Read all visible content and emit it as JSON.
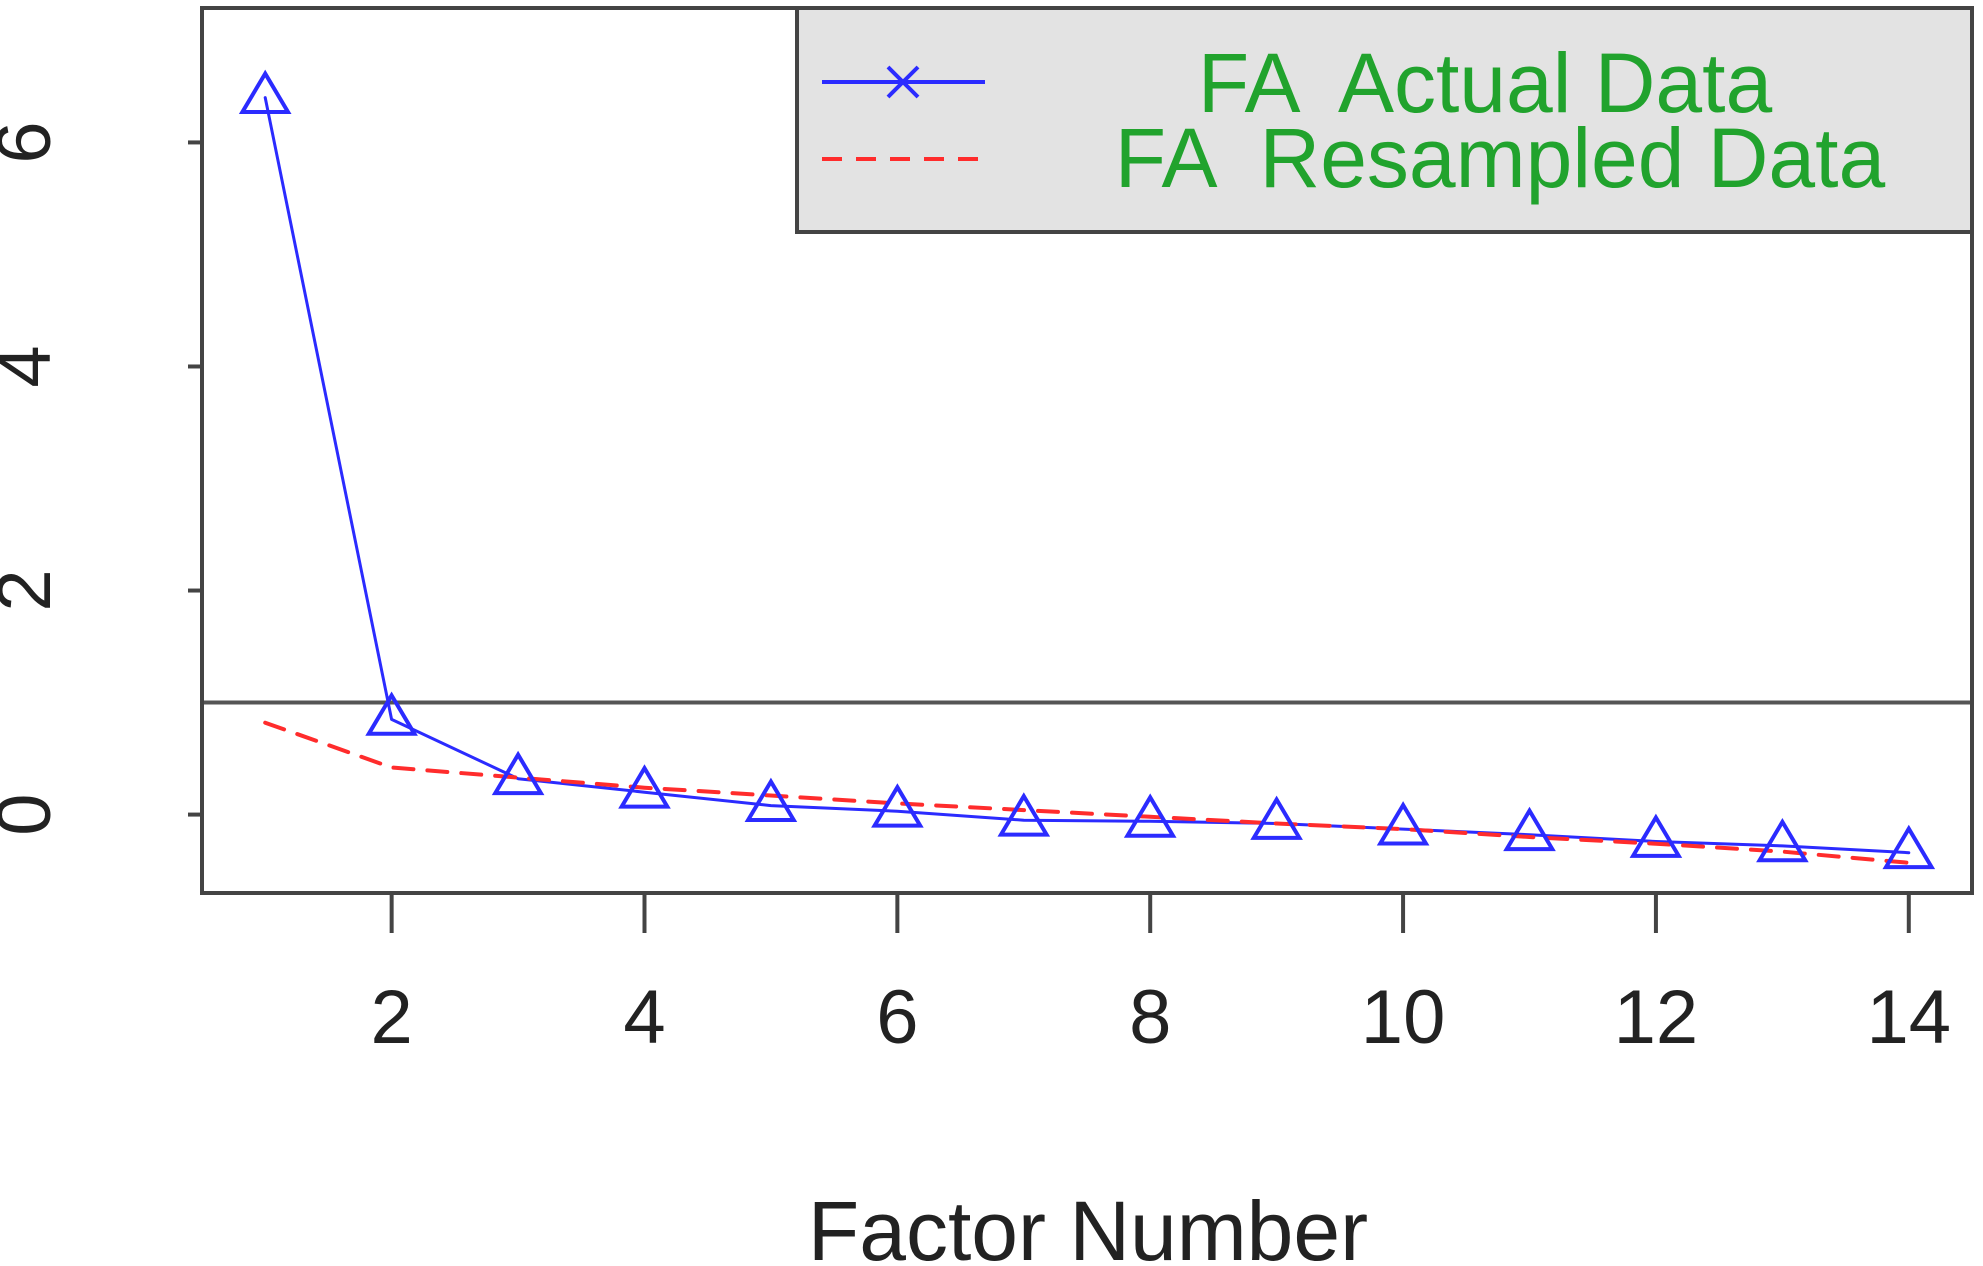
{
  "chart_data": {
    "type": "line",
    "title": "",
    "xlabel": "Factor Number",
    "ylabel": "",
    "x": [
      1,
      2,
      3,
      4,
      5,
      6,
      7,
      8,
      9,
      10,
      11,
      12,
      13,
      14
    ],
    "xlim": [
      0.5,
      14.5
    ],
    "ylim": [
      -0.7,
      7.2
    ],
    "x_ticks": [
      2,
      4,
      6,
      8,
      10,
      12,
      14
    ],
    "y_ticks": [
      0,
      2,
      4,
      6
    ],
    "reference_line": 1,
    "grid": false,
    "legend_position": "top-right",
    "series": [
      {
        "name": "FA  Actual Data",
        "style": "solid",
        "color": "#2b2bff",
        "marker": "triangle",
        "values": [
          6.4,
          0.85,
          0.32,
          0.2,
          0.08,
          0.03,
          -0.05,
          -0.06,
          -0.08,
          -0.13,
          -0.18,
          -0.24,
          -0.28,
          -0.34
        ]
      },
      {
        "name": "FA  Resampled Data",
        "style": "dashed",
        "color": "#ff2c2c",
        "values": [
          0.82,
          0.42,
          0.33,
          0.24,
          0.17,
          0.1,
          0.04,
          -0.02,
          -0.08,
          -0.13,
          -0.2,
          -0.26,
          -0.33,
          -0.43
        ]
      }
    ],
    "colors": {
      "legend_background": "#e3e3e3",
      "legend_text": "#21a32d",
      "axis": "#444444",
      "reference_line": "#555555"
    }
  }
}
